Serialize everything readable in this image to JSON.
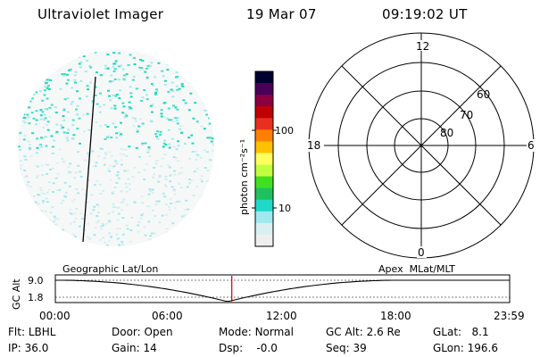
{
  "header": {
    "title": "Ultraviolet Imager",
    "date": "19 Mar 07",
    "time": "09:19:02 UT"
  },
  "colorbar": {
    "unit_label": "photon cm⁻²s⁻¹",
    "ticks": [
      "100",
      "10"
    ],
    "colors": [
      "#000030",
      "#4a005a",
      "#8a0040",
      "#c00000",
      "#e83020",
      "#ff8000",
      "#ffc000",
      "#ffff60",
      "#c0ff40",
      "#40e020",
      "#20c060",
      "#20d8c8",
      "#a0e8f0",
      "#d8f0f0",
      "#eeeeee"
    ]
  },
  "polar": {
    "mlt_labels": {
      "top": "12",
      "left": "18",
      "right": "6",
      "bottom": "0"
    },
    "lat_labels": [
      "60",
      "70",
      "80"
    ]
  },
  "timeline": {
    "left_label": "Geographic Lat/Lon",
    "right_label": "Apex  MLat/MLT",
    "axis_title": "GC Alt",
    "y_ticks": [
      "9.0",
      "1.8"
    ],
    "x_ticks": [
      "00:00",
      "06:00",
      "12:00",
      "18:00",
      "23:59"
    ],
    "current_marker_hours": 9.32,
    "curve_min_hours": 9.1,
    "curve_color": "#000000",
    "marker_color": "#cc0000"
  },
  "status": {
    "flt_label": "Flt:",
    "flt_value": "LBHL",
    "ip_label": "IP:",
    "ip_value": "36.0",
    "door_label": "Door:",
    "door_value": "Open",
    "gain_label": "Gain:",
    "gain_value": "14",
    "mode_label": "Mode:",
    "mode_value": "Normal",
    "dsp_label": "Dsp:",
    "dsp_value": "-0.0",
    "gcalt_label": "GC Alt:",
    "gcalt_value": "2.6 Re",
    "seq_label": "Seq:",
    "seq_value": "39",
    "glat_label": "GLat:",
    "glat_value": "8.1",
    "glon_label": "GLon:",
    "glon_value": "196.6"
  }
}
